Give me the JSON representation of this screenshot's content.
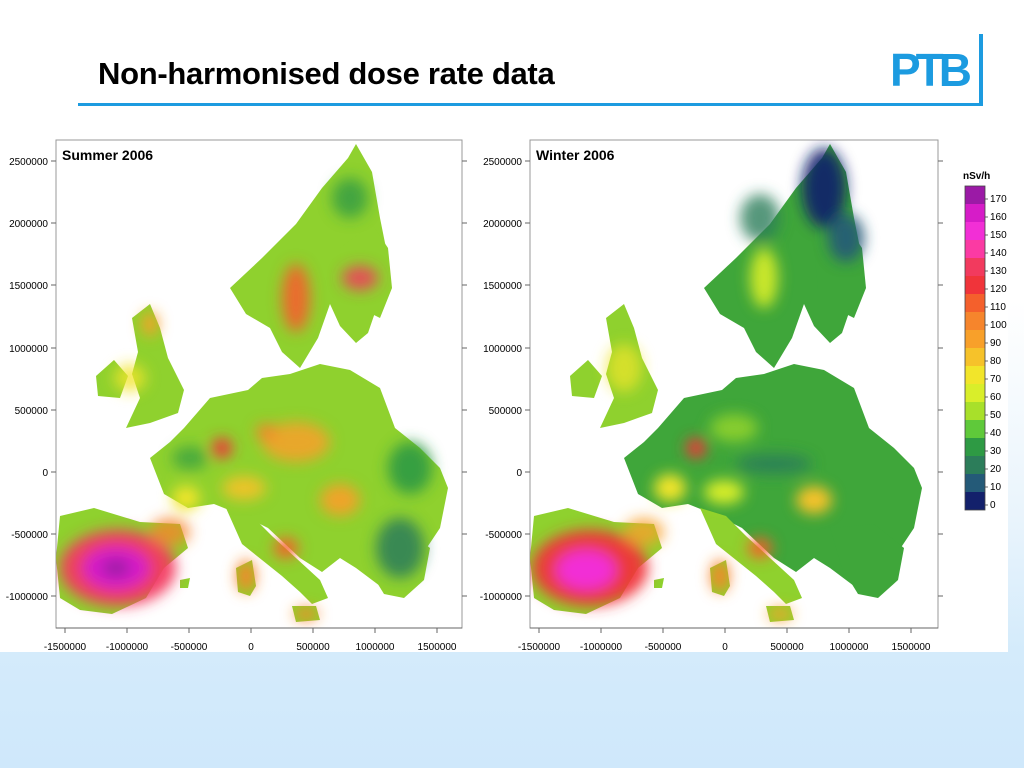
{
  "slide": {
    "title": "Non-harmonised dose rate data",
    "logo_text": "PTB",
    "accent_color": "#1c9be0"
  },
  "maps": [
    {
      "title": "Summer 2006",
      "x_ticks": [
        "-1500000",
        "-1000000",
        "-500000",
        "0",
        "500000",
        "1000000",
        "1500000"
      ],
      "y_ticks": [
        "2500000",
        "2000000",
        "1500000",
        "1000000",
        "500000",
        "0",
        "-500000",
        "-1000000"
      ],
      "base_color": "#8fd12e",
      "hotspots": [
        {
          "region": "Iberia",
          "level": 165
        },
        {
          "region": "Central Sweden",
          "level": 110
        },
        {
          "region": "Southern Finland",
          "level": 125
        },
        {
          "region": "Massif Central",
          "level": 130
        },
        {
          "region": "Sardinia",
          "level": 100
        },
        {
          "region": "Central Italy",
          "level": 110
        },
        {
          "region": "Czech Republic",
          "level": 95
        },
        {
          "region": "Carpathians",
          "level": 90
        },
        {
          "region": "Scotland",
          "level": 90
        }
      ]
    },
    {
      "title": "Winter 2006",
      "x_ticks": [
        "-1500000",
        "-1000000",
        "-500000",
        "0",
        "500000",
        "1000000",
        "1500000"
      ],
      "y_ticks": [
        "2500000",
        "2000000",
        "1500000",
        "1000000",
        "500000",
        "0",
        "-500000",
        "-1000000"
      ],
      "base_color": "#3fa63a",
      "hotspots": [
        {
          "region": "Iberia",
          "level": 150
        },
        {
          "region": "Massif Central",
          "level": 125
        },
        {
          "region": "Sardinia",
          "level": 100
        },
        {
          "region": "Central Italy",
          "level": 100
        },
        {
          "region": "Lapland",
          "level": 10
        }
      ]
    }
  ],
  "legend": {
    "unit": "nSv/h",
    "labels": [
      "170",
      "160",
      "150",
      "140",
      "130",
      "120",
      "110",
      "100",
      "90",
      "80",
      "70",
      "60",
      "50",
      "40",
      "30",
      "20",
      "10",
      "0"
    ],
    "colors": [
      "#9b1aa6",
      "#d61cc8",
      "#f22fd6",
      "#fb3aa3",
      "#f23a5e",
      "#f0343a",
      "#f4602c",
      "#f6852c",
      "#f8a02a",
      "#f6c22a",
      "#f2e52a",
      "#d9ee2a",
      "#a8e02a",
      "#5fc93a",
      "#2e9a44",
      "#2c7d5a",
      "#245a78",
      "#13206b"
    ]
  }
}
